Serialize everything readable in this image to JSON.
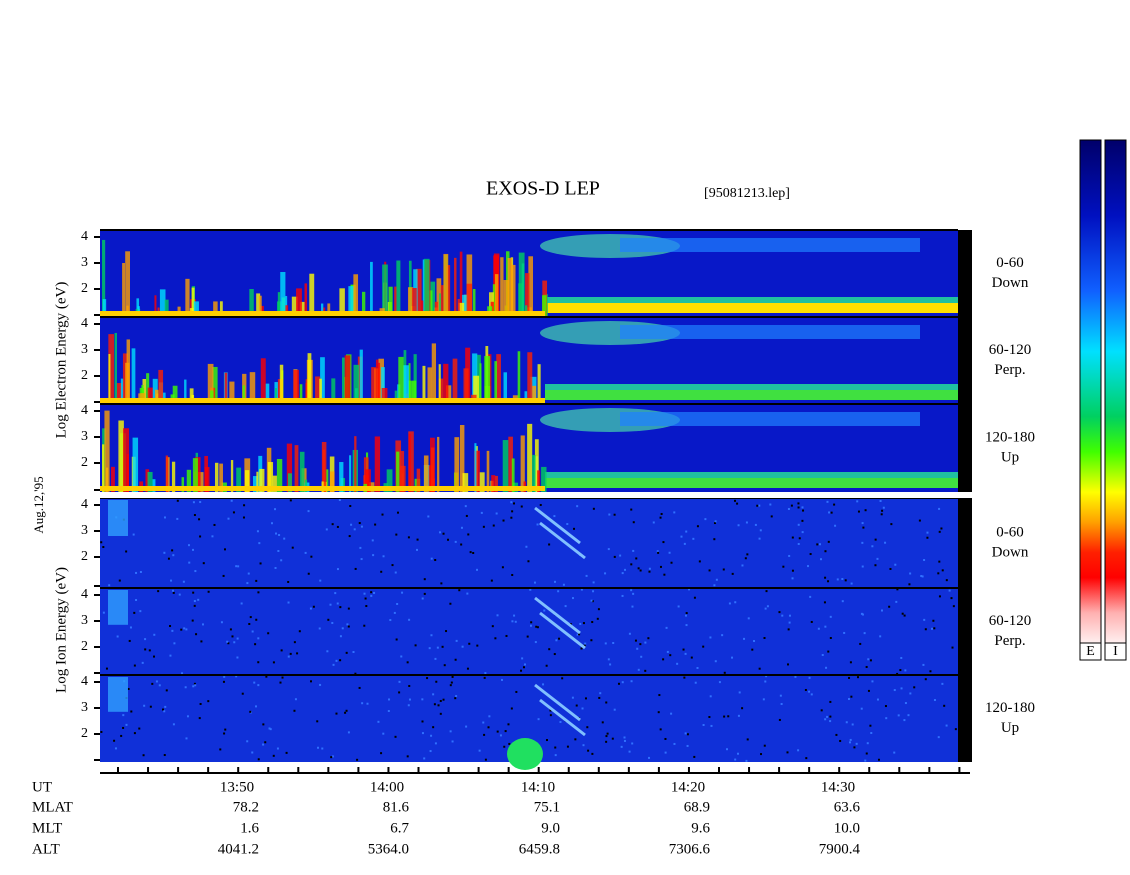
{
  "title": "EXOS-D LEP",
  "file": "[95081213.lep]",
  "date": "Aug.12,'95",
  "electron_axis_label": "Log Electron Energy (eV)",
  "ion_axis_label": "Log Ion Energy (eV)",
  "panels": [
    {
      "range": "0-60",
      "dir": "Down"
    },
    {
      "range": "60-120",
      "dir": "Perp."
    },
    {
      "range": "120-180",
      "dir": "Up"
    }
  ],
  "yticks": [
    2,
    3,
    4
  ],
  "time_axis": {
    "label": "UT",
    "ticks": [
      "13:50",
      "14:00",
      "14:10",
      "14:20",
      "14:30"
    ]
  },
  "orbit": [
    {
      "label": "MLAT",
      "values": [
        "78.2",
        "81.6",
        "75.1",
        "68.9",
        "63.6"
      ]
    },
    {
      "label": "MLT",
      "values": [
        "1.6",
        "6.7",
        "9.0",
        "9.6",
        "10.0"
      ]
    },
    {
      "label": "ALT",
      "values": [
        "4041.2",
        "5364.0",
        "6459.8",
        "7306.6",
        "7900.4"
      ]
    }
  ],
  "colorbar": [
    "E",
    "I"
  ]
}
